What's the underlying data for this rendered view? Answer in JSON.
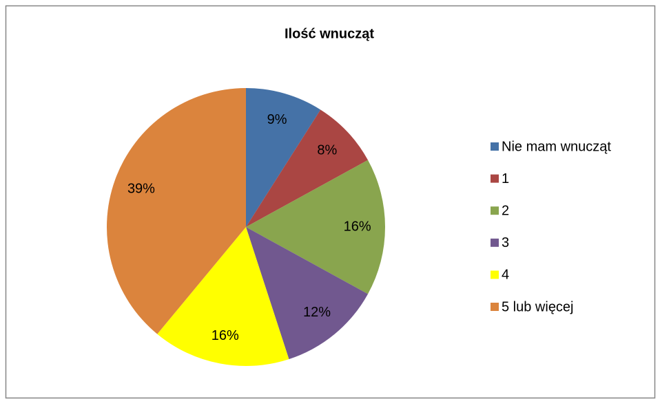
{
  "chart_data": {
    "type": "pie",
    "title": "Ilość wnucząt",
    "categories": [
      "Nie mam wnucząt",
      "1",
      "2",
      "3",
      "4",
      "5 lub więcej"
    ],
    "values": [
      9,
      8,
      16,
      12,
      16,
      39
    ],
    "value_labels": [
      "9%",
      "8%",
      "16%",
      "12%",
      "16%",
      "39%"
    ],
    "colors": [
      "#4572a7",
      "#aa4643",
      "#89a54e",
      "#71588f",
      "#ffff00",
      "#db843d"
    ],
    "legend": "right"
  }
}
